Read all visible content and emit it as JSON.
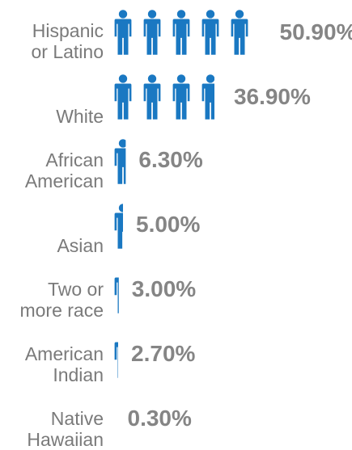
{
  "chart_data": {
    "type": "pictograph",
    "icon": "person-icon",
    "color": "#1a78c2",
    "unit_percent_per_icon": 10,
    "rows": [
      {
        "label_lines": [
          "Hispanic",
          "or Latino"
        ],
        "value": 50.9,
        "value_label": "50.90%"
      },
      {
        "label_lines": [
          "White"
        ],
        "value": 36.9,
        "value_label": "36.90%"
      },
      {
        "label_lines": [
          "African",
          "American"
        ],
        "value": 6.3,
        "value_label": "6.30%"
      },
      {
        "label_lines": [
          "Asian"
        ],
        "value": 5.0,
        "value_label": "5.00%"
      },
      {
        "label_lines": [
          "Two or",
          "more race"
        ],
        "value": 3.0,
        "value_label": "3.00%"
      },
      {
        "label_lines": [
          "American",
          "Indian"
        ],
        "value": 2.7,
        "value_label": "2.70%"
      },
      {
        "label_lines": [
          "Native",
          "Hawaiian"
        ],
        "value": 0.3,
        "value_label": "0.30%"
      }
    ]
  }
}
